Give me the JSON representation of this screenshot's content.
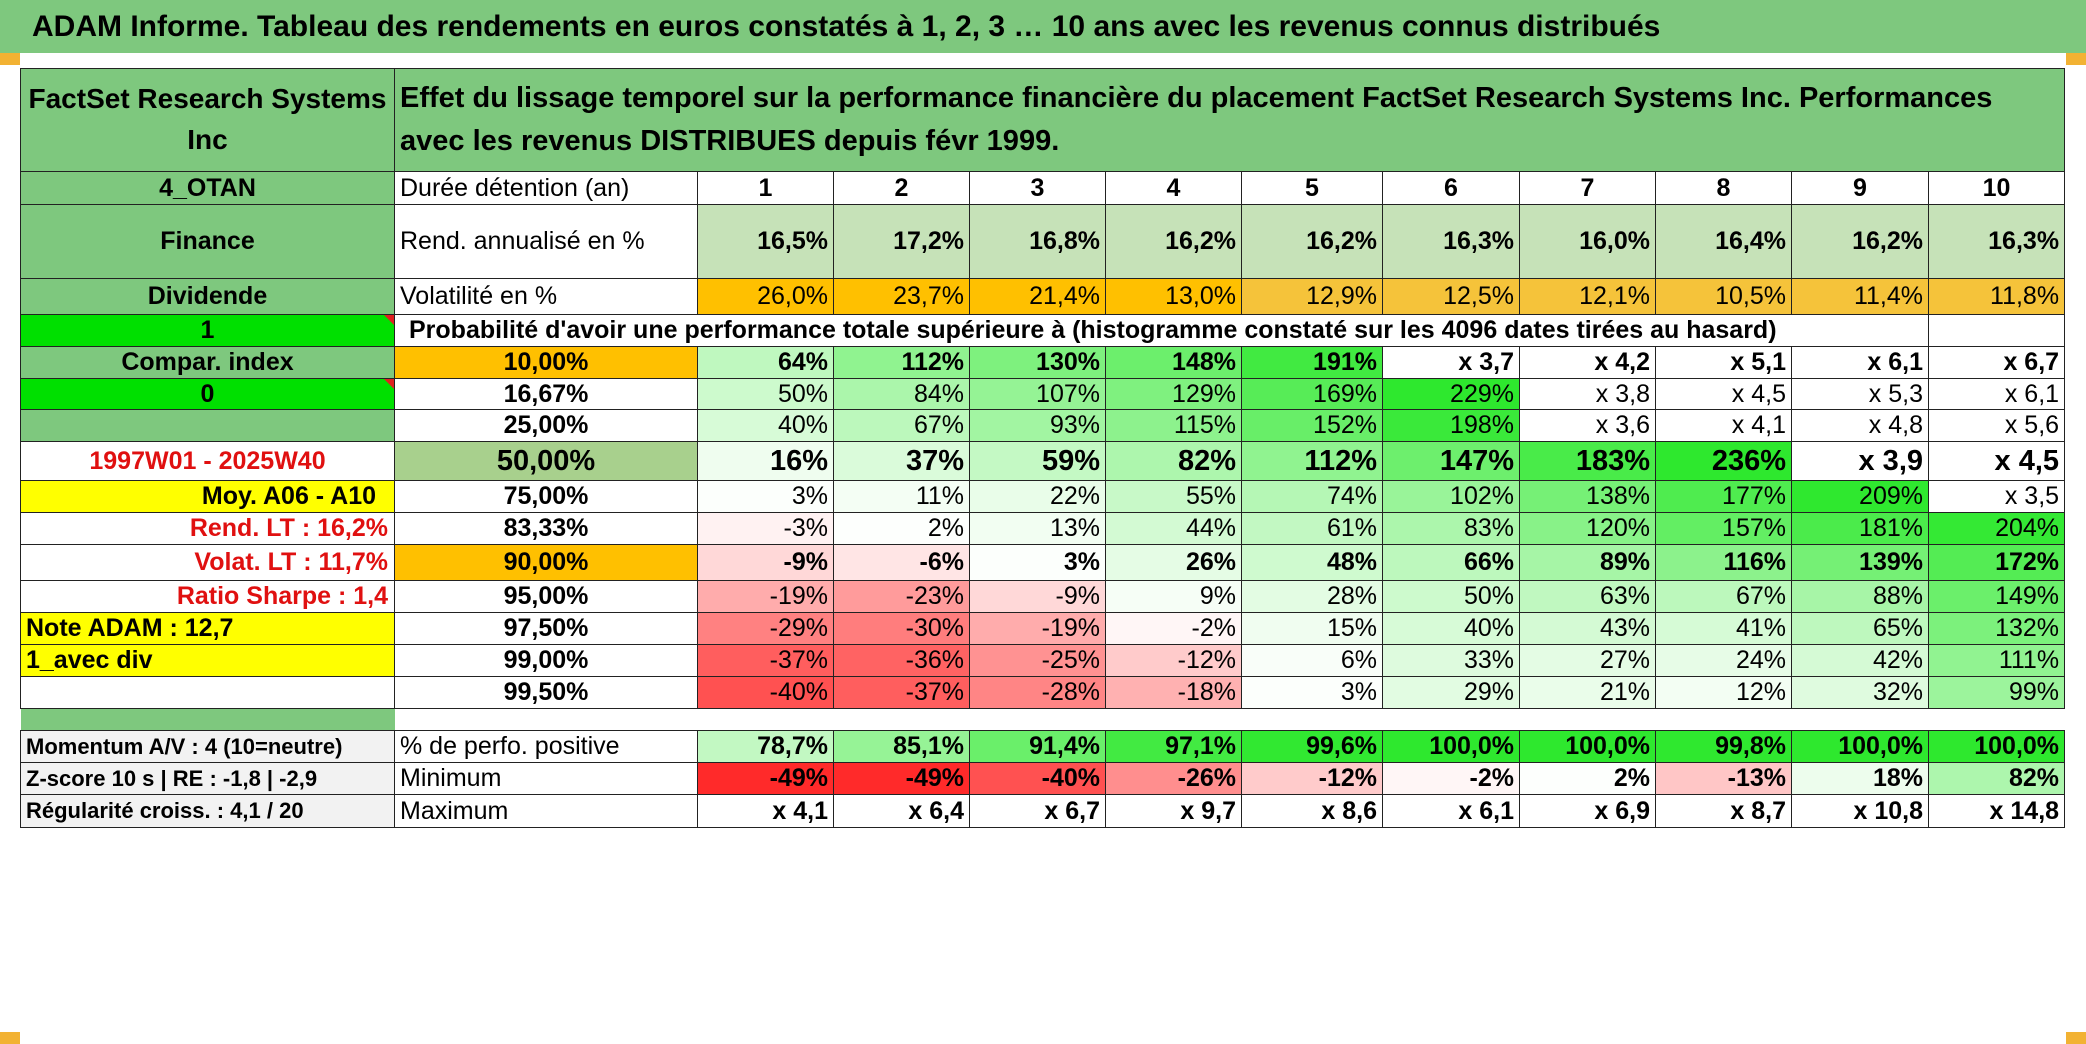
{
  "title": "ADAM Informe. Tableau des rendements en euros constatés à 1, 2, 3 … 10 ans avec les revenus connus distribués",
  "header": {
    "company": "FactSet Research Systems Inc",
    "description": "Effet du lissage temporel sur la performance financière du placement FactSet Research Systems Inc. Performances avec les revenus DISTRIBUES depuis févr 1999."
  },
  "colors": {
    "header_green": "#7ec87e",
    "orange": "#ffc000",
    "bright_green": "#00e000",
    "yellow": "#ffff00",
    "red_text": "#e01010"
  },
  "sidebar": [
    "4_OTAN",
    "Finance",
    "Dividende",
    "1",
    "Compar. index",
    "0",
    "",
    "1997W01 - 2025W40",
    "Moy. A06 - A10",
    "Rend. LT :    16,2%",
    "Volat. LT :    11,7%",
    "Ratio Sharpe :    1,4",
    "Note ADAM : 12,7",
    "1_avec div",
    "",
    "",
    "Momentum A/V : 4 (10=neutre)",
    "Z-score 10 s | RE : -1,8 | -2,9",
    "Régularité croiss. : 4,1 / 20"
  ],
  "duration": {
    "label": "Durée détention (an)",
    "years": [
      "1",
      "2",
      "3",
      "4",
      "5",
      "6",
      "7",
      "8",
      "9",
      "10"
    ]
  },
  "rend": {
    "label": "Rend. annualisé en %",
    "values": [
      "16,5%",
      "17,2%",
      "16,8%",
      "16,2%",
      "16,2%",
      "16,3%",
      "16,0%",
      "16,4%",
      "16,2%",
      "16,3%"
    ]
  },
  "vol": {
    "label": "Volatilité en %",
    "values": [
      "26,0%",
      "23,7%",
      "21,4%",
      "13,0%",
      "12,9%",
      "12,5%",
      "12,1%",
      "10,5%",
      "11,4%",
      "11,8%"
    ]
  },
  "prob_caption": "Probabilité d'avoir une performance totale supérieure à (histogramme constaté sur les 4096 dates tirées au hasard)",
  "prob_rows": [
    {
      "p": "10,00%",
      "values": [
        "64%",
        "112%",
        "130%",
        "148%",
        "191%",
        "x 3,7",
        "x 4,2",
        "x 5,1",
        "x 6,1",
        "x 6,7"
      ]
    },
    {
      "p": "16,67%",
      "values": [
        "50%",
        "84%",
        "107%",
        "129%",
        "169%",
        "229%",
        "x 3,8",
        "x 4,5",
        "x 5,3",
        "x 6,1"
      ]
    },
    {
      "p": "25,00%",
      "values": [
        "40%",
        "67%",
        "93%",
        "115%",
        "152%",
        "198%",
        "x 3,6",
        "x 4,1",
        "x 4,8",
        "x 5,6"
      ]
    },
    {
      "p": "50,00%",
      "values": [
        "16%",
        "37%",
        "59%",
        "82%",
        "112%",
        "147%",
        "183%",
        "236%",
        "x 3,9",
        "x 4,5"
      ]
    },
    {
      "p": "75,00%",
      "values": [
        "3%",
        "11%",
        "22%",
        "55%",
        "74%",
        "102%",
        "138%",
        "177%",
        "209%",
        "x 3,5"
      ]
    },
    {
      "p": "83,33%",
      "values": [
        "-3%",
        "2%",
        "13%",
        "44%",
        "61%",
        "83%",
        "120%",
        "157%",
        "181%",
        "204%"
      ]
    },
    {
      "p": "90,00%",
      "values": [
        "-9%",
        "-6%",
        "3%",
        "26%",
        "48%",
        "66%",
        "89%",
        "116%",
        "139%",
        "172%"
      ]
    },
    {
      "p": "95,00%",
      "values": [
        "-19%",
        "-23%",
        "-9%",
        "9%",
        "28%",
        "50%",
        "63%",
        "67%",
        "88%",
        "149%"
      ]
    },
    {
      "p": "97,50%",
      "values": [
        "-29%",
        "-30%",
        "-19%",
        "-2%",
        "15%",
        "40%",
        "43%",
        "41%",
        "65%",
        "132%"
      ]
    },
    {
      "p": "99,00%",
      "values": [
        "-37%",
        "-36%",
        "-25%",
        "-12%",
        "6%",
        "33%",
        "27%",
        "24%",
        "42%",
        "111%"
      ]
    },
    {
      "p": "99,50%",
      "values": [
        "-40%",
        "-37%",
        "-28%",
        "-18%",
        "3%",
        "29%",
        "21%",
        "12%",
        "32%",
        "99%"
      ]
    }
  ],
  "pos": {
    "label": "% de perfo. positive",
    "values": [
      "78,7%",
      "85,1%",
      "91,4%",
      "97,1%",
      "99,6%",
      "100,0%",
      "100,0%",
      "99,8%",
      "100,0%",
      "100,0%"
    ]
  },
  "min": {
    "label": "Minimum",
    "values": [
      "-49%",
      "-49%",
      "-40%",
      "-26%",
      "-12%",
      "-2%",
      "2%",
      "-13%",
      "18%",
      "82%"
    ]
  },
  "max": {
    "label": "Maximum",
    "values": [
      "x 4,1",
      "x 6,4",
      "x 6,7",
      "x 9,7",
      "x 8,6",
      "x 6,1",
      "x 6,9",
      "x 8,7",
      "x 10,8",
      "x 14,8"
    ]
  }
}
